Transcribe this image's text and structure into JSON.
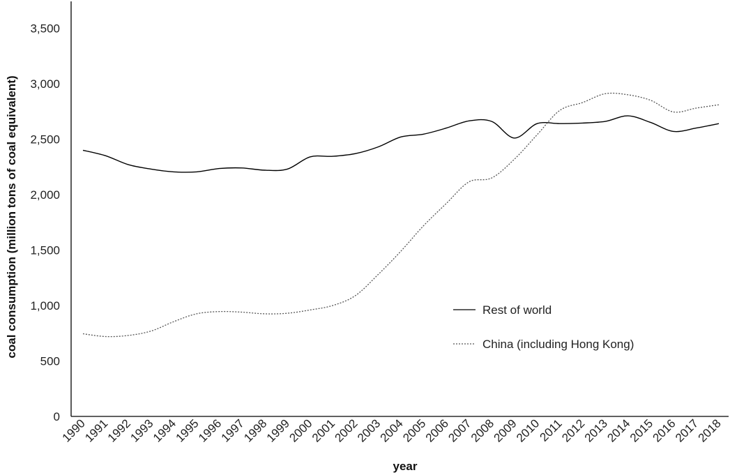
{
  "chart_data": {
    "type": "line",
    "xlabel": "year",
    "ylabel": "coal consumption (million tons of coal equivalent)",
    "x": [
      1990,
      1991,
      1992,
      1993,
      1994,
      1995,
      1996,
      1997,
      1998,
      1999,
      2000,
      2001,
      2002,
      2003,
      2004,
      2005,
      2006,
      2007,
      2008,
      2009,
      2010,
      2011,
      2012,
      2013,
      2014,
      2015,
      2016,
      2017,
      2018
    ],
    "ylim": [
      0,
      3750
    ],
    "yticks": [
      0,
      500,
      1000,
      1500,
      2000,
      2500,
      3000,
      3500
    ],
    "ytick_labels": [
      "0",
      "500",
      "1,000",
      "1,500",
      "2,000",
      "2,500",
      "3,000",
      "3,500"
    ],
    "grid": false,
    "legend_position": "center-right",
    "series": [
      {
        "name": "Rest of world",
        "style": "solid",
        "color": "#000000",
        "values": [
          2400,
          2350,
          2270,
          2230,
          2205,
          2205,
          2235,
          2240,
          2220,
          2230,
          2340,
          2345,
          2370,
          2430,
          2520,
          2545,
          2600,
          2665,
          2660,
          2510,
          2640,
          2640,
          2645,
          2660,
          2710,
          2650,
          2570,
          2600,
          2640
        ]
      },
      {
        "name": "China (including Hong Kong)",
        "style": "dotted",
        "color": "#555555",
        "values": [
          745,
          720,
          730,
          770,
          855,
          925,
          945,
          940,
          925,
          930,
          960,
          1000,
          1090,
          1280,
          1490,
          1720,
          1920,
          2115,
          2150,
          2320,
          2540,
          2760,
          2830,
          2910,
          2900,
          2850,
          2745,
          2780,
          2810
        ]
      }
    ]
  }
}
